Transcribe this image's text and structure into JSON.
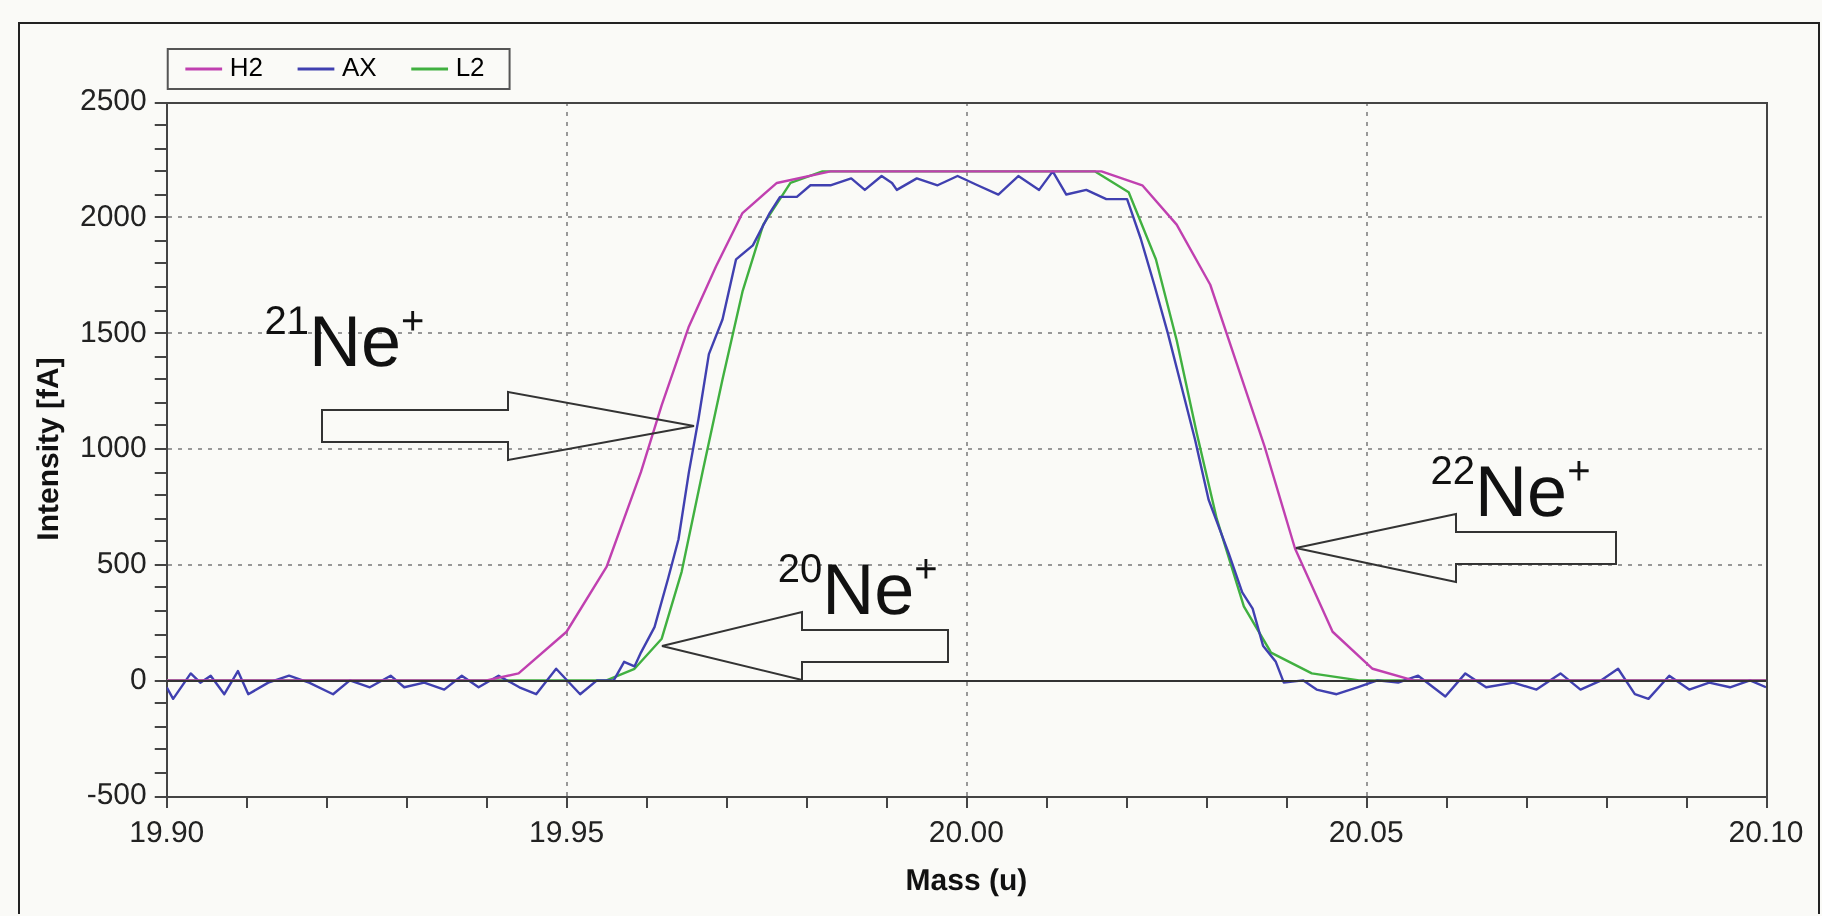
{
  "chart_data": {
    "type": "line",
    "xlabel": "Mass (u)",
    "ylabel": "Intensity [fA]",
    "xlim": [
      19.9,
      20.1
    ],
    "ylim": [
      -500,
      2500
    ],
    "xticks": [
      {
        "value": 19.9,
        "label": "19.90"
      },
      {
        "value": 19.91,
        "label": null
      },
      {
        "value": 19.92,
        "label": null
      },
      {
        "value": 19.93,
        "label": null
      },
      {
        "value": 19.94,
        "label": null
      },
      {
        "value": 19.95,
        "label": "19.95"
      },
      {
        "value": 19.96,
        "label": null
      },
      {
        "value": 19.97,
        "label": null
      },
      {
        "value": 19.98,
        "label": null
      },
      {
        "value": 19.99,
        "label": null
      },
      {
        "value": 20.0,
        "label": "20.00"
      },
      {
        "value": 20.01,
        "label": null
      },
      {
        "value": 20.02,
        "label": null
      },
      {
        "value": 20.03,
        "label": null
      },
      {
        "value": 20.04,
        "label": null
      },
      {
        "value": 20.05,
        "label": "20.05"
      },
      {
        "value": 20.06,
        "label": null
      },
      {
        "value": 20.07,
        "label": null
      },
      {
        "value": 20.08,
        "label": null
      },
      {
        "value": 20.09,
        "label": null
      },
      {
        "value": 20.1,
        "label": "20.10"
      }
    ],
    "yticks": [
      -500,
      {
        "value": -400,
        "label": null
      },
      {
        "value": -300,
        "label": null
      },
      {
        "value": -200,
        "label": null
      },
      {
        "value": -100,
        "label": null
      },
      0,
      {
        "value": 100,
        "label": null
      },
      {
        "value": 200,
        "label": null
      },
      {
        "value": 300,
        "label": null
      },
      {
        "value": 400,
        "label": null
      },
      500,
      {
        "value": 600,
        "label": null
      },
      {
        "value": 700,
        "label": null
      },
      {
        "value": 800,
        "label": null
      },
      {
        "value": 900,
        "label": null
      },
      1000,
      {
        "value": 1100,
        "label": null
      },
      {
        "value": 1200,
        "label": null
      },
      {
        "value": 1300,
        "label": null
      },
      {
        "value": 1400,
        "label": null
      },
      1500,
      {
        "value": 1600,
        "label": null
      },
      {
        "value": 1700,
        "label": null
      },
      {
        "value": 1800,
        "label": null
      },
      {
        "value": 1900,
        "label": null
      },
      2000,
      {
        "value": 2100,
        "label": null
      },
      {
        "value": 2200,
        "label": null
      },
      {
        "value": 2300,
        "label": null
      },
      {
        "value": 2400,
        "label": null
      },
      2500
    ],
    "grid": true,
    "legend": "top left",
    "marker": "none",
    "line_style": "solid",
    "series": [
      {
        "name": "H2",
        "color": "#c040b0",
        "x": [
          19.9,
          19.94,
          19.944,
          19.95,
          19.955,
          19.9593,
          19.9619,
          19.9653,
          19.9687,
          19.972,
          19.9763,
          19.983,
          20.0169,
          20.022,
          20.0263,
          20.0305,
          20.0339,
          20.0373,
          20.0411,
          20.0458,
          20.0508,
          20.0559,
          20.1
        ],
        "values": [
          0,
          0,
          30,
          210,
          490,
          900,
          1190,
          1530,
          1790,
          2020,
          2150,
          2200,
          2200,
          2140,
          1970,
          1710,
          1360,
          1010,
          570,
          210,
          50,
          0,
          0
        ]
      },
      {
        "name": "AX",
        "color": "#4040b0",
        "x": [
          19.9,
          19.9008,
          19.903,
          19.9042,
          19.9055,
          19.9072,
          19.9089,
          19.9102,
          19.9127,
          19.9153,
          19.9178,
          19.9208,
          19.9229,
          19.9254,
          19.928,
          19.9297,
          19.9322,
          19.9347,
          19.9369,
          19.939,
          19.9415,
          19.9441,
          19.9462,
          19.9487,
          19.9517,
          19.9538,
          19.9559,
          19.9572,
          19.9585,
          19.9593,
          19.961,
          19.9627,
          19.964,
          19.9653,
          19.9665,
          19.9678,
          19.9695,
          19.9712,
          19.9733,
          19.9754,
          19.9767,
          19.9788,
          19.9805,
          19.983,
          19.9856,
          19.9873,
          19.9894,
          19.9907,
          19.9913,
          19.9938,
          19.9964,
          19.9989,
          20.0014,
          20.004,
          20.0065,
          20.0091,
          20.0108,
          20.0125,
          20.015,
          20.0175,
          20.0201,
          20.0218,
          20.0235,
          20.0252,
          20.0269,
          20.0286,
          20.0303,
          20.0328,
          20.0345,
          20.0358,
          20.0371,
          20.0387,
          20.0397,
          20.0421,
          20.0438,
          20.0463,
          20.0489,
          20.0514,
          20.054,
          20.0565,
          20.0599,
          20.0624,
          20.065,
          20.0684,
          20.0713,
          20.0743,
          20.0768,
          20.0794,
          20.0815,
          20.0836,
          20.0853,
          20.0879,
          20.0904,
          20.0929,
          20.0955,
          20.098,
          20.1
        ],
        "values": [
          -30,
          -80,
          30,
          -10,
          20,
          -60,
          40,
          -60,
          -10,
          20,
          -10,
          -60,
          0,
          -30,
          20,
          -30,
          -10,
          -40,
          20,
          -30,
          20,
          -30,
          -60,
          50,
          -60,
          0,
          0,
          80,
          60,
          120,
          230,
          440,
          610,
          900,
          1130,
          1410,
          1560,
          1820,
          1880,
          2020,
          2090,
          2090,
          2140,
          2140,
          2170,
          2120,
          2180,
          2150,
          2120,
          2170,
          2140,
          2180,
          2140,
          2100,
          2180,
          2120,
          2200,
          2100,
          2120,
          2080,
          2080,
          1910,
          1710,
          1500,
          1270,
          1040,
          780,
          550,
          380,
          310,
          150,
          80,
          -10,
          0,
          -40,
          -60,
          -30,
          0,
          -10,
          20,
          -70,
          30,
          -30,
          -10,
          -40,
          30,
          -40,
          0,
          50,
          -60,
          -80,
          20,
          -40,
          -10,
          -30,
          0,
          -30
        ]
      },
      {
        "name": "L2",
        "color": "#40b040",
        "x": [
          19.9,
          19.955,
          19.9585,
          19.9619,
          19.9644,
          19.967,
          19.9695,
          19.972,
          19.9746,
          19.978,
          19.982,
          20.0161,
          20.0203,
          20.0237,
          20.0263,
          20.0288,
          20.0313,
          20.0347,
          20.0381,
          20.0432,
          20.0491,
          20.1
        ],
        "values": [
          0,
          0,
          50,
          180,
          470,
          900,
          1300,
          1680,
          1970,
          2150,
          2200,
          2200,
          2110,
          1820,
          1470,
          1070,
          700,
          320,
          120,
          30,
          0,
          0
        ]
      }
    ],
    "annotations": [
      "$^{21}$Ne$^{+}$",
      {
        "text": "$^{20}$Ne$^{+}$",
        "x": 19.9619,
        "y": 150
      },
      {
        "text": "$^{22}$Ne$^{+}$",
        "x": 20.0413,
        "y": 570
      }
    ]
  }
}
